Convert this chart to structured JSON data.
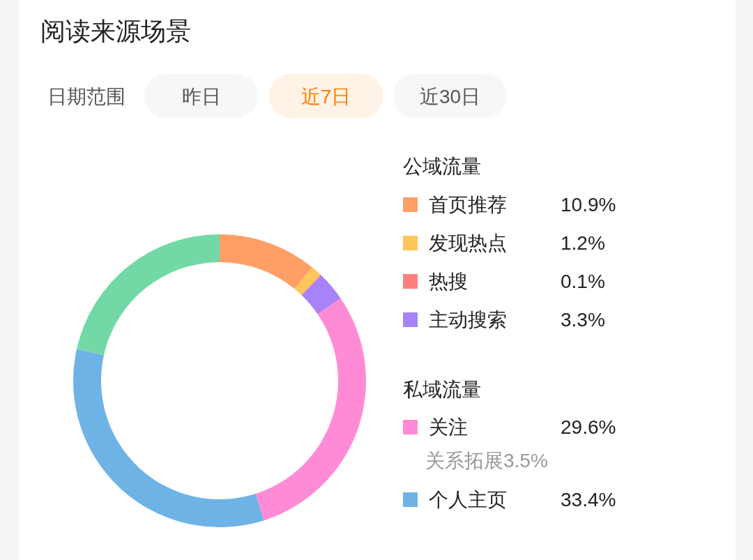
{
  "chart_data": {
    "type": "donut",
    "title": "阅读来源场景",
    "categories": [
      "首页推荐",
      "发现热点",
      "热搜",
      "主动搜索",
      "关注",
      "个人主页",
      null
    ],
    "values": [
      10.9,
      1.2,
      0.1,
      3.3,
      29.6,
      33.4,
      21.5
    ],
    "value_labels": [
      "10.9%",
      "1.2%",
      "0.1%",
      "3.3%",
      "29.6%",
      "33.4%",
      null
    ],
    "colors": [
      "#ff9f66",
      "#ffc65c",
      "#ff7f7f",
      "#a782fa",
      "#ff8bd6",
      "#6fb3e6",
      "#72d9a6"
    ],
    "legend": "right",
    "annotations": [
      "日期范围",
      "昨日",
      "近7日",
      "近30日",
      "公域流量",
      "私域流量",
      "关系拓展3.5%"
    ]
  }
}
